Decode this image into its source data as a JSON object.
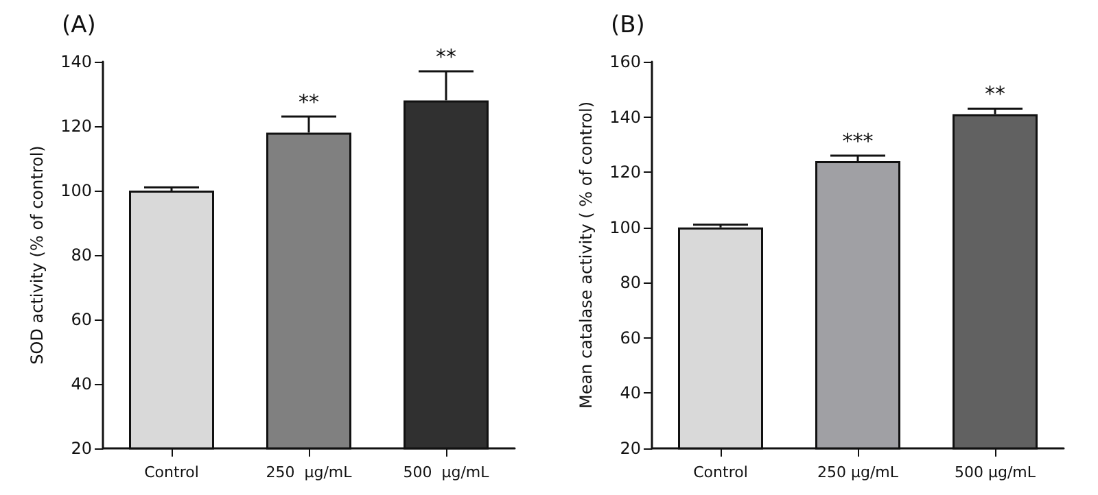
{
  "chart_data": [
    {
      "type": "bar",
      "title": "(A)",
      "ylabel": "SOD activity (% of control)",
      "categories": [
        "Control",
        "250  μg/mL",
        "500  μg/mL"
      ],
      "values": [
        100,
        118,
        128
      ],
      "errors": [
        1,
        5,
        9
      ],
      "colors": [
        "#d9d9d9",
        "#808080",
        "#303030"
      ],
      "ylim": [
        20,
        140
      ],
      "yticks": [
        20,
        40,
        60,
        80,
        100,
        120,
        140
      ],
      "grid": false,
      "annotations": [
        {
          "text": "**",
          "x": "250  μg/mL",
          "y": 123
        },
        {
          "text": "**",
          "x": "500  μg/mL",
          "y": 137
        }
      ]
    },
    {
      "type": "bar",
      "title": "(B)",
      "ylabel": "Mean catalase activity ( % of control)",
      "categories": [
        "Control",
        "250 μg/mL",
        "500 μg/mL"
      ],
      "values": [
        100,
        124,
        141
      ],
      "errors": [
        1,
        2,
        2
      ],
      "colors": [
        "#d9d9d9",
        "#a0a0a4",
        "#616161"
      ],
      "ylim": [
        20,
        160
      ],
      "yticks": [
        20,
        40,
        60,
        80,
        100,
        120,
        140,
        160
      ],
      "grid": false,
      "annotations": [
        {
          "text": "***",
          "x": "250 μg/mL",
          "y": 126
        },
        {
          "text": "**",
          "x": "500 μg/mL",
          "y": 143
        }
      ]
    }
  ]
}
